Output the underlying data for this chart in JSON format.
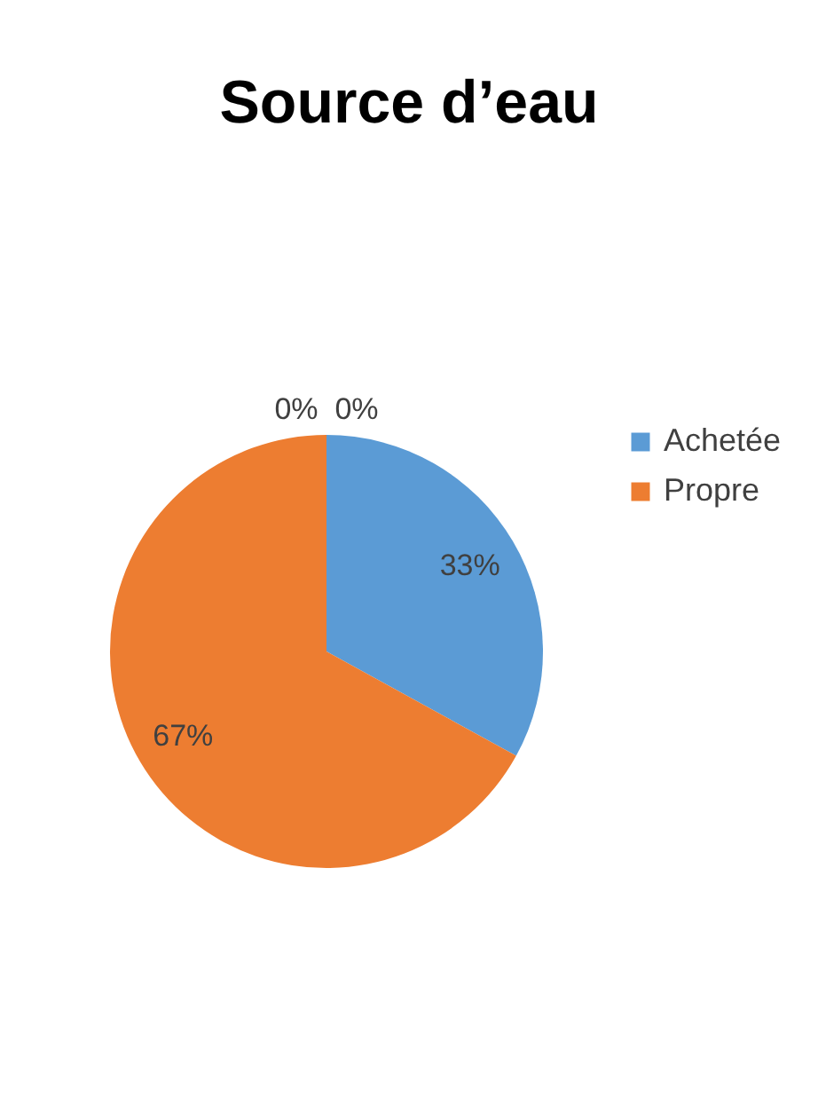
{
  "chart_data": {
    "type": "pie",
    "title": "Source d’eau",
    "categories": [
      "Achetée",
      "Propre",
      null,
      null
    ],
    "values": [
      33,
      67,
      0,
      0
    ],
    "colors": [
      "#5b9bd5",
      "#ed7d31",
      "#a5a5a5",
      "#ffc000"
    ],
    "value_labels": [
      "33%",
      "67%",
      "0%",
      "0%"
    ],
    "legend": "right"
  }
}
